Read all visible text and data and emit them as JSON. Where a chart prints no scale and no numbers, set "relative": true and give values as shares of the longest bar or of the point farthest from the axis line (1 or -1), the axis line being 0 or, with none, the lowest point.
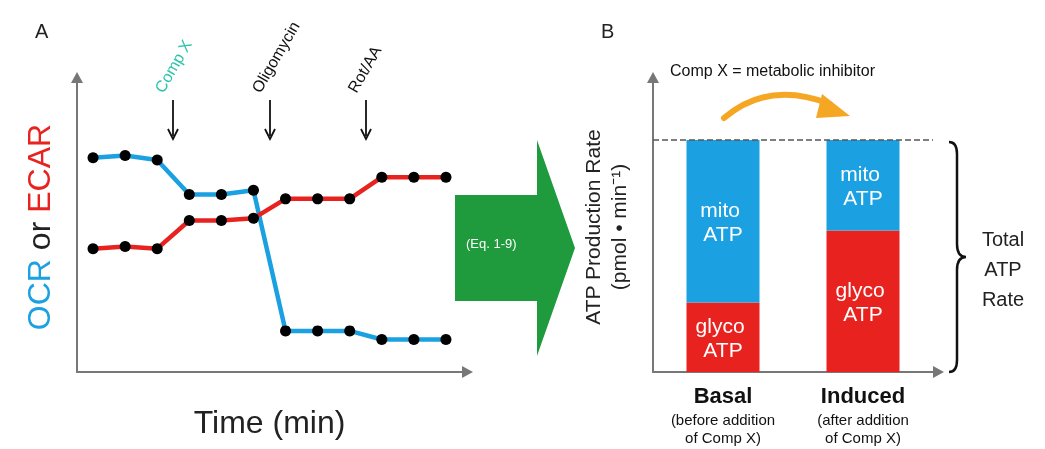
{
  "chart_data": [
    {
      "type": "line",
      "title": "A",
      "xlabel": "Time (min)",
      "ylabel": "OCR or ECAR",
      "relative": true,
      "legend": false,
      "grid": false,
      "marker": "circle",
      "line_style": "solid",
      "categories": [
        null,
        null,
        null,
        null,
        null,
        null,
        null,
        null,
        null,
        null,
        null,
        null
      ],
      "series": [
        {
          "color": "#1ba1e2",
          "values": [
            0.99,
            1,
            0.98,
            0.82,
            0.82,
            0.84,
            0.19,
            0.19,
            0.19,
            0.15,
            0.15,
            0.15
          ]
        },
        {
          "color": "#e8231f",
          "values": [
            0.57,
            0.58,
            0.57,
            0.7,
            0.7,
            0.71,
            0.8,
            0.8,
            0.8,
            0.9,
            0.9,
            0.9
          ]
        }
      ],
      "annotations": [
        "Comp X",
        "Oligomycin",
        "Rot/AA"
      ]
    },
    {
      "type": "bar",
      "title": "B",
      "ylabel": "ATP Production Rate\n(pmol • min⁻¹)",
      "relative": true,
      "stacked": true,
      "legend": false,
      "grid": false,
      "categories": [
        "Basal\n(before addition\nof Comp X)",
        "Induced\n(after addition\nof Comp X)"
      ],
      "series": [
        {
          "name": "glyco ATP",
          "color": "#e8231f",
          "values": [
            0.3,
            0.61
          ]
        },
        {
          "name": "mito ATP",
          "color": "#1ba1e2",
          "values": [
            0.7,
            0.39
          ]
        }
      ],
      "ref_lines": [
        {
          "axis": "y",
          "value": 1,
          "line_style": "dashed",
          "color": "#555555"
        }
      ],
      "annotations": [
        "Comp X = metabolic inhibitor",
        "Total ATP Rate",
        "(Eq. 1-9)"
      ]
    }
  ]
}
